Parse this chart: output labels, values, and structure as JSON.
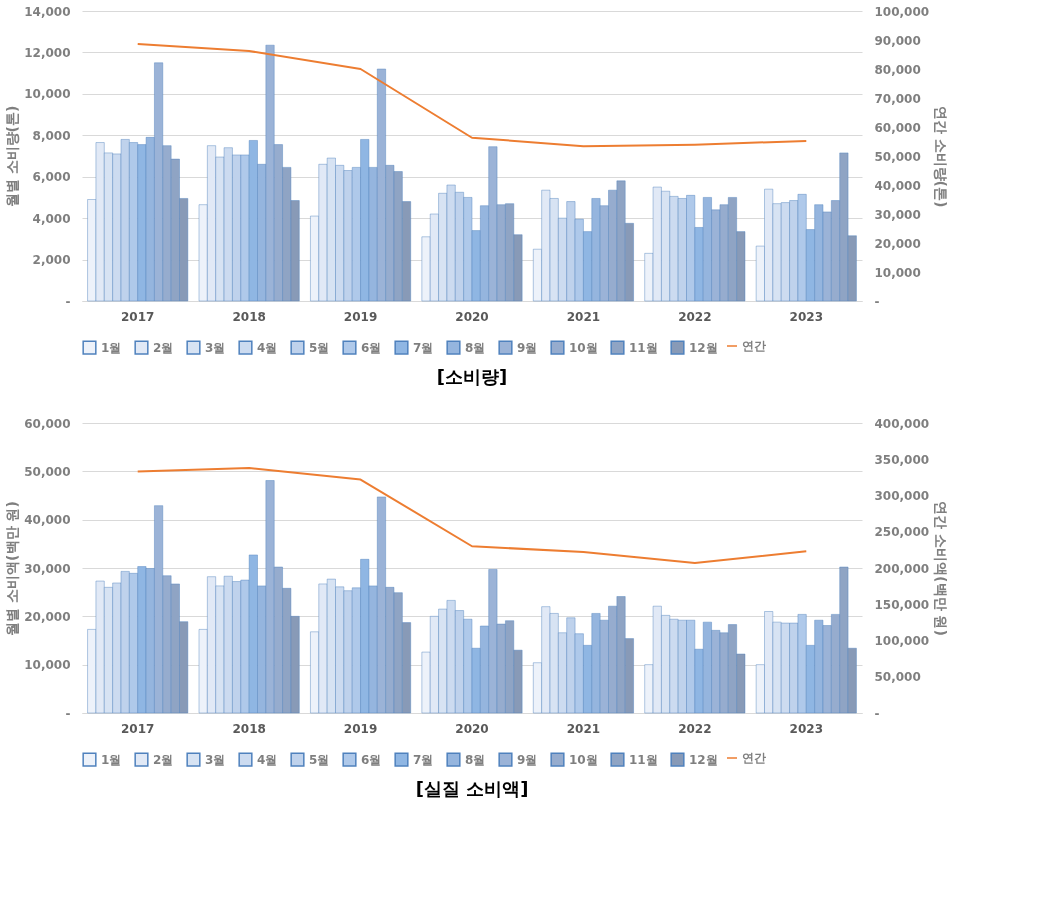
{
  "chart_data": [
    {
      "type": "bar",
      "title": "[소비량]",
      "ylabel": "월별 소비량(톤)",
      "y2label": "연간 소비량(톤)",
      "grid": "y",
      "legend": "bottom",
      "categories": [
        "2017",
        "2018",
        "2019",
        "2020",
        "2021",
        "2022",
        "2023"
      ],
      "ylim": [
        0,
        14000
      ],
      "yticks": [
        {
          "value": 0,
          "label": "-"
        },
        {
          "value": 2000,
          "label": "2,000"
        },
        {
          "value": 4000,
          "label": "4,000"
        },
        {
          "value": 6000,
          "label": "6,000"
        },
        {
          "value": 8000,
          "label": "8,000"
        },
        {
          "value": 10000,
          "label": "10,000"
        },
        {
          "value": 12000,
          "label": "12,000"
        },
        {
          "value": 14000,
          "label": "14,000"
        }
      ],
      "y2lim": [
        0,
        100000
      ],
      "y2ticks": [
        {
          "value": 0,
          "label": "-"
        },
        {
          "value": 10000,
          "label": "10,000"
        },
        {
          "value": 20000,
          "label": "20,000"
        },
        {
          "value": 30000,
          "label": "30,000"
        },
        {
          "value": 40000,
          "label": "40,000"
        },
        {
          "value": 50000,
          "label": "50,000"
        },
        {
          "value": 60000,
          "label": "60,000"
        },
        {
          "value": 70000,
          "label": "70,000"
        },
        {
          "value": 80000,
          "label": "80,000"
        },
        {
          "value": 90000,
          "label": "90,000"
        },
        {
          "value": 100000,
          "label": "100,000"
        }
      ],
      "series": [
        {
          "name": "1월",
          "color": "#edf2fa",
          "values": [
            4900,
            4650,
            4100,
            3100,
            2500,
            2300,
            2650
          ]
        },
        {
          "name": "2월",
          "color": "#e1e9f6",
          "values": [
            7650,
            7500,
            6600,
            4200,
            5350,
            5500,
            5400
          ]
        },
        {
          "name": "3월",
          "color": "#d7e3f3",
          "values": [
            7150,
            6950,
            6900,
            5200,
            4950,
            5300,
            4700
          ]
        },
        {
          "name": "4월",
          "color": "#ccdbf0",
          "values": [
            7100,
            7400,
            6550,
            5600,
            4000,
            5050,
            4750
          ]
        },
        {
          "name": "5월",
          "color": "#bfd2ec",
          "values": [
            7800,
            7050,
            6300,
            5250,
            4800,
            4950,
            4850
          ]
        },
        {
          "name": "6월",
          "color": "#afc9ea",
          "values": [
            7650,
            7050,
            6450,
            5000,
            3950,
            5100,
            5150
          ]
        },
        {
          "name": "7월",
          "color": "#8fb6e3",
          "values": [
            7550,
            7750,
            7800,
            3400,
            3350,
            3550,
            3450
          ]
        },
        {
          "name": "8월",
          "color": "#95b5de",
          "values": [
            7900,
            6600,
            6450,
            4600,
            4950,
            5000,
            4650
          ]
        },
        {
          "name": "9월",
          "color": "#9bb3d7",
          "values": [
            11500,
            12350,
            11200,
            7450,
            4600,
            4400,
            4300
          ]
        },
        {
          "name": "10월",
          "color": "#96acce",
          "values": [
            7500,
            7550,
            6550,
            4650,
            5350,
            4650,
            4850
          ]
        },
        {
          "name": "11월",
          "color": "#8fa4c4",
          "values": [
            6850,
            6450,
            6250,
            4700,
            5800,
            5000,
            7150
          ]
        },
        {
          "name": "12월",
          "color": "#889ab7",
          "values": [
            4950,
            4850,
            4800,
            3200,
            3750,
            3350,
            3150
          ]
        },
        {
          "name": "연간",
          "type": "line",
          "axis": "y2",
          "color": "#ed7d31",
          "values": [
            88600,
            86200,
            80000,
            56300,
            53400,
            53900,
            55200
          ]
        }
      ]
    },
    {
      "type": "bar",
      "title": "[실질 소비액]",
      "ylabel": "월별 소비액(백만 원)",
      "y2label": "연간 소비액(백만 원)",
      "grid": "y",
      "legend": "bottom",
      "categories": [
        "2017",
        "2018",
        "2019",
        "2020",
        "2021",
        "2022",
        "2023"
      ],
      "ylim": [
        0,
        60000
      ],
      "yticks": [
        {
          "value": 0,
          "label": "-"
        },
        {
          "value": 10000,
          "label": "10,000"
        },
        {
          "value": 20000,
          "label": "20,000"
        },
        {
          "value": 30000,
          "label": "30,000"
        },
        {
          "value": 40000,
          "label": "40,000"
        },
        {
          "value": 50000,
          "label": "50,000"
        },
        {
          "value": 60000,
          "label": "60,000"
        }
      ],
      "y2lim": [
        0,
        400000
      ],
      "y2ticks": [
        {
          "value": 0,
          "label": "-"
        },
        {
          "value": 50000,
          "label": "50,000"
        },
        {
          "value": 100000,
          "label": "100,000"
        },
        {
          "value": 150000,
          "label": "150,000"
        },
        {
          "value": 200000,
          "label": "200,000"
        },
        {
          "value": 250000,
          "label": "250,000"
        },
        {
          "value": 300000,
          "label": "300,000"
        },
        {
          "value": 350000,
          "label": "350,000"
        },
        {
          "value": 400000,
          "label": "400,000"
        }
      ],
      "series": [
        {
          "name": "1월",
          "color": "#edf2fa",
          "values": [
            17300,
            17300,
            16800,
            12600,
            10400,
            10000,
            10000
          ]
        },
        {
          "name": "2월",
          "color": "#e1e9f6",
          "values": [
            27300,
            28200,
            26700,
            20000,
            22000,
            22100,
            21000
          ]
        },
        {
          "name": "3월",
          "color": "#d7e3f3",
          "values": [
            26000,
            26300,
            27700,
            21500,
            20600,
            20200,
            18800
          ]
        },
        {
          "name": "4월",
          "color": "#ccdbf0",
          "values": [
            26900,
            28300,
            26100,
            23300,
            16600,
            19400,
            18600
          ]
        },
        {
          "name": "5월",
          "color": "#bfd2ec",
          "values": [
            29300,
            27200,
            25300,
            21200,
            19700,
            19200,
            18600
          ]
        },
        {
          "name": "6월",
          "color": "#afc9ea",
          "values": [
            28900,
            27500,
            25900,
            19400,
            16400,
            19200,
            20400
          ]
        },
        {
          "name": "7월",
          "color": "#8fb6e3",
          "values": [
            30300,
            32700,
            31800,
            13400,
            14000,
            13200,
            14000
          ]
        },
        {
          "name": "8월",
          "color": "#95b5de",
          "values": [
            29900,
            26300,
            26300,
            18000,
            20600,
            18800,
            19200
          ]
        },
        {
          "name": "9월",
          "color": "#9bb3d7",
          "values": [
            42900,
            48100,
            44700,
            29700,
            19200,
            17100,
            18100
          ]
        },
        {
          "name": "10월",
          "color": "#96acce",
          "values": [
            28400,
            30200,
            26000,
            18400,
            22100,
            16600,
            20400
          ]
        },
        {
          "name": "11월",
          "color": "#8fa4c4",
          "values": [
            26700,
            25800,
            24900,
            19100,
            24100,
            18300,
            30200
          ]
        },
        {
          "name": "12월",
          "color": "#889ab7",
          "values": [
            18900,
            20000,
            18700,
            13000,
            15400,
            12200,
            13400
          ]
        },
        {
          "name": "연간",
          "type": "line",
          "axis": "y2",
          "color": "#ed7d31",
          "values": [
            333000,
            338000,
            322000,
            230000,
            222000,
            207000,
            223000
          ]
        }
      ]
    }
  ]
}
